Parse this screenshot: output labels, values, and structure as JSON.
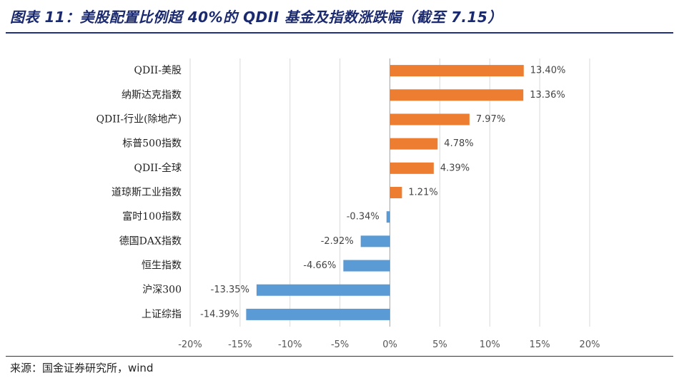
{
  "figure": {
    "title": "图表 11：美股配置比例超 40%的 QDII 基金及指数涨跌幅（截至 7.15）",
    "source": "来源：国金证券研究所，wind"
  },
  "chart_data": {
    "type": "bar",
    "orientation": "horizontal",
    "title": "",
    "xlabel": "",
    "ylabel": "",
    "categories": [
      "QDII-美股",
      "纳斯达克指数",
      "QDII-行业(除地产)",
      "标普500指数",
      "QDII-全球",
      "道琼斯工业指数",
      "富时100指数",
      "德国DAX指数",
      "恒生指数",
      "沪深300",
      "上证综指"
    ],
    "values": [
      13.4,
      13.36,
      7.97,
      4.78,
      4.39,
      1.21,
      -0.34,
      -2.92,
      -4.66,
      -13.35,
      -14.39
    ],
    "value_labels": [
      "13.40%",
      "13.36%",
      "7.97%",
      "4.78%",
      "4.39%",
      "1.21%",
      "-0.34%",
      "-2.92%",
      "-4.66%",
      "-13.35%",
      "-14.39%"
    ],
    "xlim": [
      -20,
      20
    ],
    "xticks": [
      -20,
      -15,
      -10,
      -5,
      0,
      5,
      10,
      15,
      20
    ],
    "xtick_labels": [
      "-20%",
      "-15%",
      "-10%",
      "-5%",
      "0%",
      "5%",
      "10%",
      "15%",
      "20%"
    ],
    "grid": true,
    "legend": "none",
    "colors": {
      "positive": "#ED7D31",
      "negative": "#5B9BD5",
      "grid": "#D9D9D9",
      "axis": "#A6A6A6"
    }
  }
}
